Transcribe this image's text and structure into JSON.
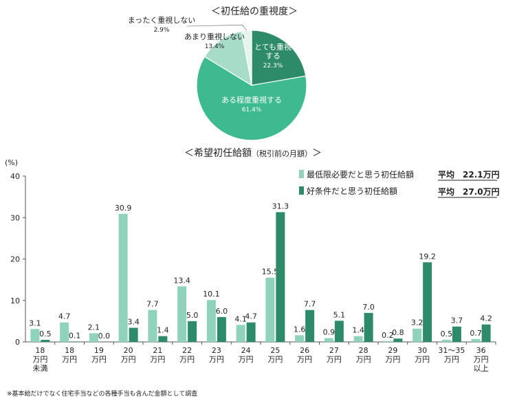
{
  "pie_title": "＜初任給の重視度＞",
  "bar_title": "＜希望初任給額",
  "bar_title_sub": "（税引前の月額）",
  "bar_title_close": "＞",
  "y_unit": "(%)",
  "legend": {
    "min_label": "最低限必要だと思う初任給額",
    "good_label": "好条件だと思う初任給額",
    "min_avg": "平均　22.1万円",
    "good_avg": "平均　27.0万円"
  },
  "footnote": "※基本給だけでなく住宅手当などの各種手当も含んだ金額として調査",
  "colors": {
    "min_series": "#8fd3bd",
    "good_series": "#2e8b6a",
    "pie_very": "#2e8b6a",
    "pie_some": "#3dba8f",
    "pie_little": "#a6dcc8",
    "pie_none": "#e6f4ee"
  },
  "chart_data": [
    {
      "type": "pie",
      "title": "＜初任給の重視度＞",
      "slices": [
        {
          "label": "とても重視する",
          "value": 22.3,
          "value_label": "22.3%"
        },
        {
          "label": "ある程度重視する",
          "value": 61.4,
          "value_label": "61.4%"
        },
        {
          "label": "あまり重視しない",
          "value": 13.4,
          "value_label": "13.4%"
        },
        {
          "label": "まったく重視しない",
          "value": 2.9,
          "value_label": "2.9%"
        }
      ]
    },
    {
      "type": "bar",
      "title": "＜希望初任給額（税引前の月額）＞",
      "ylabel": "(%)",
      "ylim": [
        0,
        40
      ],
      "yticks": [
        0,
        10,
        20,
        30,
        40
      ],
      "categories": [
        [
          "18",
          "万円",
          "未満"
        ],
        [
          "18",
          "万円"
        ],
        [
          "19",
          "万円"
        ],
        [
          "20",
          "万円"
        ],
        [
          "21",
          "万円"
        ],
        [
          "22",
          "万円"
        ],
        [
          "23",
          "万円"
        ],
        [
          "24",
          "万円"
        ],
        [
          "25",
          "万円"
        ],
        [
          "26",
          "万円"
        ],
        [
          "27",
          "万円"
        ],
        [
          "28",
          "万円"
        ],
        [
          "29",
          "万円"
        ],
        [
          "30",
          "万円"
        ],
        [
          "31～35",
          "万円"
        ],
        [
          "36",
          "万円",
          "以上"
        ]
      ],
      "series": [
        {
          "name": "最低限必要だと思う初任給額",
          "values": [
            3.1,
            4.7,
            2.1,
            30.9,
            7.7,
            13.4,
            10.1,
            4.1,
            15.5,
            1.6,
            0.9,
            1.4,
            0.2,
            3.2,
            0.5,
            0.7
          ],
          "labels": [
            "3.1",
            "4.7",
            "2.1",
            "30.9",
            "7.7",
            "13.4",
            "10.1",
            "4.1",
            "15.5",
            "1.6",
            "0.9",
            "1.4",
            "0.2",
            "3.2",
            "0.5",
            "0.7"
          ]
        },
        {
          "name": "好条件だと思う初任給額",
          "values": [
            0.5,
            0.1,
            0.0,
            3.4,
            1.4,
            5.0,
            6.0,
            4.7,
            31.3,
            7.7,
            5.1,
            7.0,
            0.8,
            19.2,
            3.7,
            4.2
          ],
          "labels": [
            "0.5",
            "0.1",
            "0.0",
            "3.4",
            "1.4",
            "5.0",
            "6.0",
            "4.7",
            "31.3",
            "7.7",
            "5.1",
            "7.0",
            "0.8",
            "19.2",
            "3.7",
            "4.2"
          ]
        }
      ]
    }
  ]
}
